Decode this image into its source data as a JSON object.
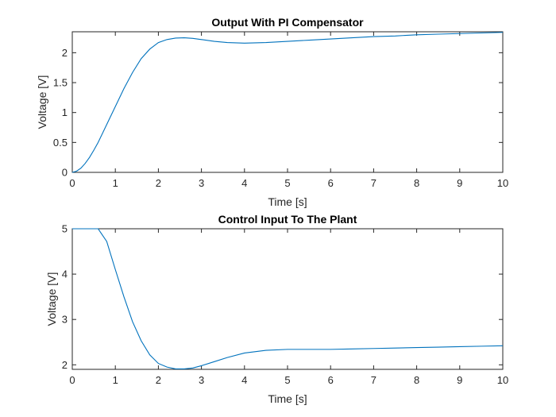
{
  "chart_data": [
    {
      "type": "line",
      "title": "Output With PI Compensator",
      "xlabel": "Time [s]",
      "ylabel": "Voltage [V]",
      "xlim": [
        0,
        10
      ],
      "ylim": [
        0,
        2.35
      ],
      "xticks": [
        0,
        1,
        2,
        3,
        4,
        5,
        6,
        7,
        8,
        9,
        10
      ],
      "yticks": [
        0,
        0.5,
        1,
        1.5,
        2
      ],
      "ytick_labels": [
        "0",
        "0.5",
        "1",
        "1.5",
        "2"
      ],
      "grid": false,
      "color": "#0072BD",
      "series": [
        {
          "x": [
            0,
            0.1,
            0.2,
            0.3,
            0.4,
            0.5,
            0.6,
            0.8,
            1.0,
            1.2,
            1.4,
            1.6,
            1.8,
            2.0,
            2.2,
            2.4,
            2.6,
            2.8,
            3.0,
            3.3,
            3.6,
            4.0,
            4.5,
            5.0,
            5.5,
            6.0,
            6.5,
            7.0,
            7.5,
            8.0,
            8.5,
            9.0,
            9.5,
            10.0
          ],
          "values": [
            0,
            0.02,
            0.07,
            0.15,
            0.25,
            0.37,
            0.5,
            0.8,
            1.1,
            1.4,
            1.67,
            1.9,
            2.06,
            2.17,
            2.22,
            2.245,
            2.25,
            2.24,
            2.22,
            2.19,
            2.17,
            2.16,
            2.17,
            2.19,
            2.21,
            2.23,
            2.25,
            2.27,
            2.28,
            2.3,
            2.31,
            2.32,
            2.33,
            2.34
          ]
        }
      ]
    },
    {
      "type": "line",
      "title": "Control Input To The Plant",
      "xlabel": "Time [s]",
      "ylabel": "Voltage [V]",
      "xlim": [
        0,
        10
      ],
      "ylim": [
        1.9,
        5
      ],
      "xticks": [
        0,
        1,
        2,
        3,
        4,
        5,
        6,
        7,
        8,
        9,
        10
      ],
      "yticks": [
        2,
        3,
        4,
        5
      ],
      "ytick_labels": [
        "2",
        "3",
        "4",
        "5"
      ],
      "grid": false,
      "color": "#0072BD",
      "series": [
        {
          "x": [
            0,
            0.3,
            0.6,
            0.8,
            1.0,
            1.2,
            1.4,
            1.6,
            1.8,
            2.0,
            2.2,
            2.4,
            2.6,
            2.8,
            3.0,
            3.3,
            3.6,
            4.0,
            4.5,
            5.0,
            5.5,
            6.0,
            6.5,
            7.0,
            7.5,
            8.0,
            8.5,
            9.0,
            9.5,
            10.0
          ],
          "values": [
            5,
            5,
            5,
            4.72,
            4.1,
            3.5,
            2.95,
            2.53,
            2.22,
            2.03,
            1.95,
            1.91,
            1.91,
            1.93,
            1.98,
            2.07,
            2.16,
            2.26,
            2.32,
            2.34,
            2.34,
            2.34,
            2.35,
            2.36,
            2.37,
            2.38,
            2.39,
            2.4,
            2.41,
            2.42
          ]
        }
      ]
    }
  ]
}
